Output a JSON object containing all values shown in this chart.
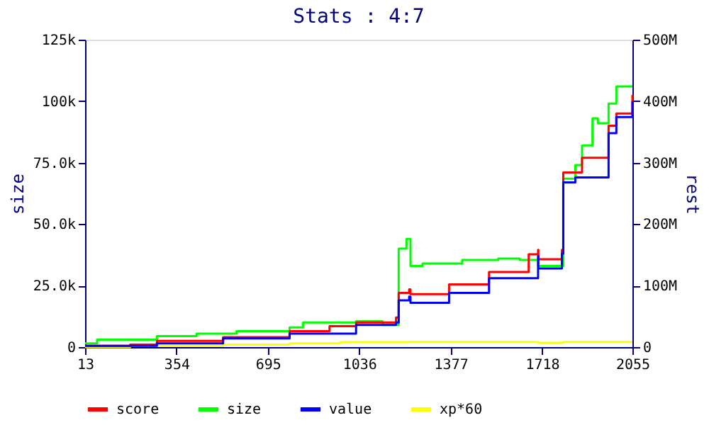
{
  "chart_data": {
    "type": "step",
    "title": "Stats : 4:7",
    "xlabel": null,
    "ylabel": "size",
    "y2label": "rest",
    "xlim": [
      13,
      2055
    ],
    "xticks": [
      13,
      354,
      695,
      1036,
      1377,
      1718,
      2055
    ],
    "ylim": [
      0,
      125000
    ],
    "yticks": [
      0,
      {
        "value": 25000,
        "label": "25.0k"
      },
      {
        "value": 50000,
        "label": "50.0k"
      },
      {
        "value": 75000,
        "label": "75.0k"
      },
      {
        "value": 100000,
        "label": "100k"
      },
      {
        "value": 125000,
        "label": "125k"
      }
    ],
    "y2lim": [
      0,
      500000000
    ],
    "y2ticks": [
      0,
      {
        "value": 100000000,
        "label": "100M"
      },
      {
        "value": 200000000,
        "label": "200M"
      },
      {
        "value": 300000000,
        "label": "300M"
      },
      {
        "value": 400000000,
        "label": "400M"
      },
      {
        "value": 500000000,
        "label": "500M"
      }
    ],
    "legend": "bottom",
    "grid": false,
    "marker": "none",
    "line_style": "solid",
    "series": [
      {
        "name": "score",
        "color": "#ff0000",
        "axis": "y2",
        "x": [
          13,
          181,
          281,
          528,
          776,
          925,
          1024,
          1173,
          1183,
          1222,
          1227,
          1371,
          1520,
          1668,
          1703,
          1704,
          1792,
          1797,
          1867,
          1966,
          1995,
          2055
        ],
        "values": [
          2000000,
          4000000,
          10000000,
          16000000,
          26000000,
          34000000,
          40000000,
          48000000,
          88000000,
          94000000,
          86000000,
          102000000,
          122000000,
          151000000,
          158000000,
          143000000,
          158000000,
          284000000,
          308000000,
          360000000,
          380000000,
          410000000
        ]
      },
      {
        "name": "size",
        "color": "#00ff00",
        "x": [
          13,
          58,
          281,
          429,
          578,
          776,
          826,
          950,
          1024,
          1123,
          1183,
          1212,
          1227,
          1272,
          1420,
          1554,
          1634,
          1703,
          1797,
          1842,
          1867,
          1906,
          1926,
          1966,
          1995,
          2055
        ],
        "values": [
          1500,
          3000,
          4500,
          5500,
          6500,
          8000,
          10000,
          10000,
          10500,
          9000,
          40000,
          44000,
          33000,
          34000,
          35400,
          36000,
          35400,
          33000,
          68500,
          74000,
          82000,
          93000,
          91000,
          99000,
          106000,
          106000
        ]
      },
      {
        "name": "value",
        "color": "#0000ff",
        "axis": "y2",
        "x": [
          13,
          281,
          528,
          776,
          1024,
          1173,
          1183,
          1222,
          1227,
          1371,
          1520,
          1703,
          1704,
          1792,
          1797,
          1842,
          1966,
          1995,
          2055
        ],
        "values": [
          2000000,
          6000000,
          14000000,
          22000000,
          36000000,
          40000000,
          76000000,
          82000000,
          72000000,
          88000000,
          112000000,
          148000000,
          128000000,
          152000000,
          268000000,
          276000000,
          348000000,
          374000000,
          400000000
        ]
      },
      {
        "name": "xp*60",
        "color": "#ffff00",
        "x": [
          13,
          181,
          528,
          776,
          965,
          1222,
          1703,
          1797,
          2055
        ],
        "values": [
          0,
          500,
          1000,
          1500,
          2000,
          2100,
          1700,
          2100,
          2100
        ]
      }
    ]
  }
}
